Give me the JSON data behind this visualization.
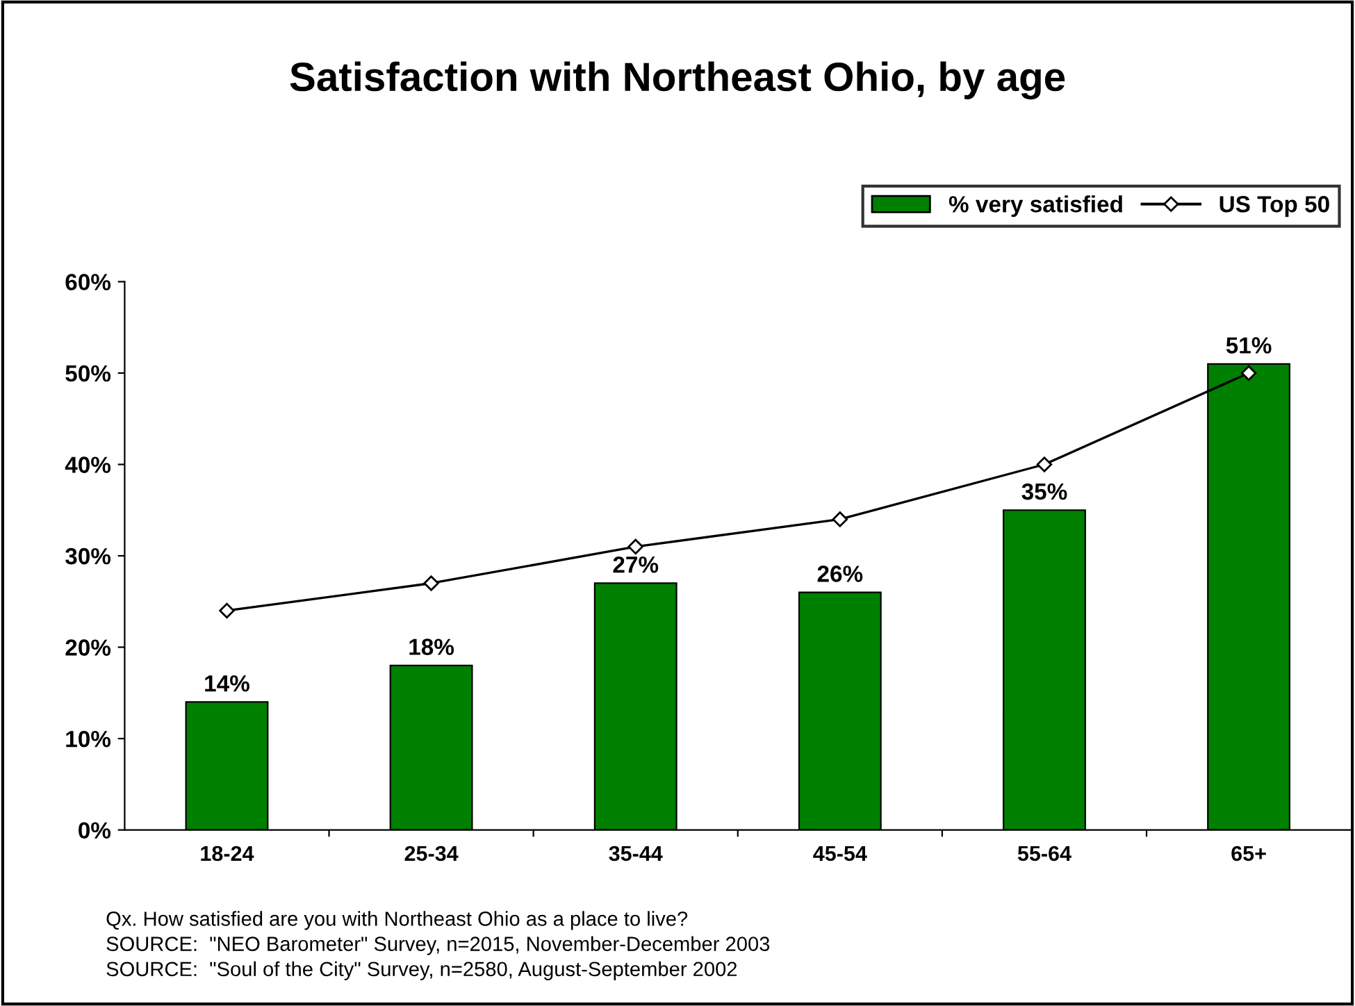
{
  "chart_data": {
    "type": "bar",
    "title": "Satisfaction with Northeast Ohio, by age",
    "categories": [
      "18-24",
      "25-34",
      "35-44",
      "45-54",
      "55-64",
      "65+"
    ],
    "series": [
      {
        "name": "% very satisfied",
        "color": "#008000",
        "values": [
          14,
          18,
          27,
          26,
          35,
          51
        ],
        "value_labels": [
          "14%",
          "18%",
          "27%",
          "26%",
          "35%",
          "51%"
        ]
      },
      {
        "name": "US Top 50",
        "type": "line",
        "color": "#000000",
        "marker": "diamond",
        "values": [
          24,
          27,
          31,
          34,
          40,
          50
        ]
      }
    ],
    "ylim": [
      0,
      60
    ],
    "yticks": [
      {
        "value": 0,
        "label": "0%"
      },
      {
        "value": 10,
        "label": "10%"
      },
      {
        "value": 20,
        "label": "20%"
      },
      {
        "value": 30,
        "label": "30%"
      },
      {
        "value": 40,
        "label": "40%"
      },
      {
        "value": 50,
        "label": "50%"
      },
      {
        "value": 60,
        "label": "60%"
      }
    ],
    "grid": false,
    "legend": "top right",
    "annotations": [
      "Qx. How satisfied are you with Northeast Ohio as a place to live?",
      "SOURCE:  \"NEO Barometer\" Survey, n=2015, November-December 2003",
      "SOURCE:  \"Soul of the City\" Survey, n=2580, August-September 2002"
    ]
  }
}
